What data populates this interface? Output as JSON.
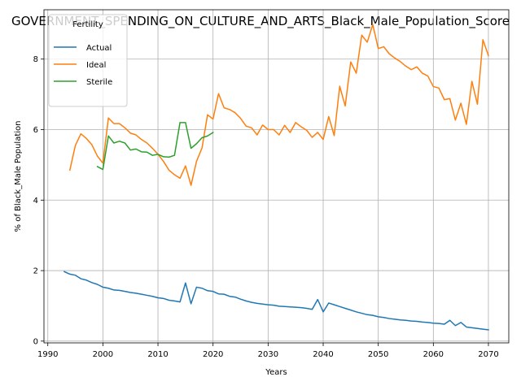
{
  "chart_data": {
    "type": "line",
    "title": "GOVERNMENT_SPENDING_ON_CULTURE_AND_ARTS_Black_Male_Population_Score",
    "xlabel": "Years",
    "ylabel": "% of Black_Male Population",
    "xlim": [
      1989.3,
      2073.7
    ],
    "ylim": [
      -0.05,
      9.4
    ],
    "xticks": [
      1990,
      2000,
      2010,
      2020,
      2030,
      2040,
      2050,
      2060,
      2070
    ],
    "yticks": [
      0,
      2,
      4,
      6,
      8
    ],
    "grid": true,
    "legend": {
      "title": "Fertility",
      "placement": "top-left"
    },
    "series": [
      {
        "name": "Actual",
        "color": "#1f77b4",
        "x": [
          1993,
          1994,
          1995,
          1996,
          1997,
          1998,
          1999,
          2000,
          2001,
          2002,
          2003,
          2004,
          2005,
          2006,
          2007,
          2008,
          2009,
          2010,
          2011,
          2012,
          2013,
          2014,
          2015,
          2016,
          2017,
          2018,
          2019,
          2020,
          2021,
          2022,
          2023,
          2024,
          2025,
          2026,
          2027,
          2028,
          2029,
          2030,
          2031,
          2032,
          2033,
          2034,
          2035,
          2036,
          2037,
          2038,
          2039,
          2040,
          2041,
          2042,
          2043,
          2044,
          2045,
          2046,
          2047,
          2048,
          2049,
          2050,
          2051,
          2052,
          2053,
          2054,
          2055,
          2056,
          2057,
          2058,
          2059,
          2060,
          2061,
          2062,
          2063,
          2064,
          2065,
          2066,
          2067,
          2068,
          2069,
          2070
        ],
        "values": [
          1.97,
          1.9,
          1.87,
          1.77,
          1.73,
          1.66,
          1.61,
          1.53,
          1.5,
          1.45,
          1.44,
          1.41,
          1.38,
          1.36,
          1.33,
          1.3,
          1.27,
          1.23,
          1.21,
          1.16,
          1.14,
          1.11,
          1.65,
          1.06,
          1.53,
          1.5,
          1.43,
          1.41,
          1.34,
          1.33,
          1.27,
          1.25,
          1.19,
          1.14,
          1.1,
          1.07,
          1.05,
          1.03,
          1.02,
          0.99,
          0.98,
          0.97,
          0.96,
          0.95,
          0.93,
          0.9,
          1.18,
          0.83,
          1.08,
          1.03,
          0.98,
          0.93,
          0.88,
          0.83,
          0.79,
          0.75,
          0.73,
          0.69,
          0.67,
          0.64,
          0.62,
          0.6,
          0.59,
          0.57,
          0.56,
          0.54,
          0.53,
          0.51,
          0.5,
          0.48,
          0.59,
          0.44,
          0.53,
          0.4,
          0.38,
          0.36,
          0.34,
          0.32
        ]
      },
      {
        "name": "Ideal",
        "color": "#ff7f0e",
        "x": [
          1994,
          1995,
          1996,
          1997,
          1998,
          1999,
          2000,
          2001,
          2002,
          2003,
          2004,
          2005,
          2006,
          2007,
          2008,
          2009,
          2010,
          2011,
          2012,
          2013,
          2014,
          2015,
          2016,
          2017,
          2018,
          2019,
          2020,
          2021,
          2022,
          2023,
          2024,
          2025,
          2026,
          2027,
          2028,
          2029,
          2030,
          2031,
          2032,
          2033,
          2034,
          2035,
          2036,
          2037,
          2038,
          2039,
          2040,
          2041,
          2042,
          2043,
          2044,
          2045,
          2046,
          2047,
          2048,
          2049,
          2050,
          2051,
          2052,
          2053,
          2054,
          2055,
          2056,
          2057,
          2058,
          2059,
          2060,
          2061,
          2062,
          2063,
          2064,
          2065,
          2066,
          2067,
          2068,
          2069,
          2070
        ],
        "values": [
          4.85,
          5.55,
          5.88,
          5.75,
          5.57,
          5.25,
          5.05,
          6.33,
          6.17,
          6.17,
          6.05,
          5.9,
          5.85,
          5.72,
          5.62,
          5.47,
          5.3,
          5.1,
          4.85,
          4.72,
          4.62,
          4.97,
          4.42,
          5.1,
          5.48,
          6.42,
          6.3,
          7.02,
          6.62,
          6.57,
          6.48,
          6.32,
          6.1,
          6.05,
          5.85,
          6.13,
          6.0,
          6.0,
          5.85,
          6.12,
          5.92,
          6.2,
          6.08,
          5.98,
          5.78,
          5.92,
          5.72,
          6.37,
          5.83,
          7.23,
          6.67,
          7.92,
          7.6,
          8.68,
          8.48,
          8.98,
          8.3,
          8.35,
          8.15,
          8.03,
          7.93,
          7.8,
          7.7,
          7.78,
          7.6,
          7.52,
          7.22,
          7.18,
          6.85,
          6.88,
          6.27,
          6.75,
          6.15,
          7.37,
          6.72,
          8.55,
          8.1
        ]
      },
      {
        "name": "Sterile",
        "color": "#2ca02c",
        "x": [
          1999,
          2000,
          2001,
          2002,
          2003,
          2004,
          2005,
          2006,
          2007,
          2008,
          2009,
          2010,
          2011,
          2012,
          2013,
          2014,
          2015,
          2016,
          2017,
          2018,
          2019,
          2020
        ],
        "values": [
          4.95,
          4.87,
          5.82,
          5.62,
          5.67,
          5.62,
          5.42,
          5.45,
          5.37,
          5.36,
          5.27,
          5.3,
          5.23,
          5.22,
          5.27,
          6.2,
          6.2,
          5.47,
          5.6,
          5.77,
          5.82,
          5.92
        ]
      }
    ]
  }
}
